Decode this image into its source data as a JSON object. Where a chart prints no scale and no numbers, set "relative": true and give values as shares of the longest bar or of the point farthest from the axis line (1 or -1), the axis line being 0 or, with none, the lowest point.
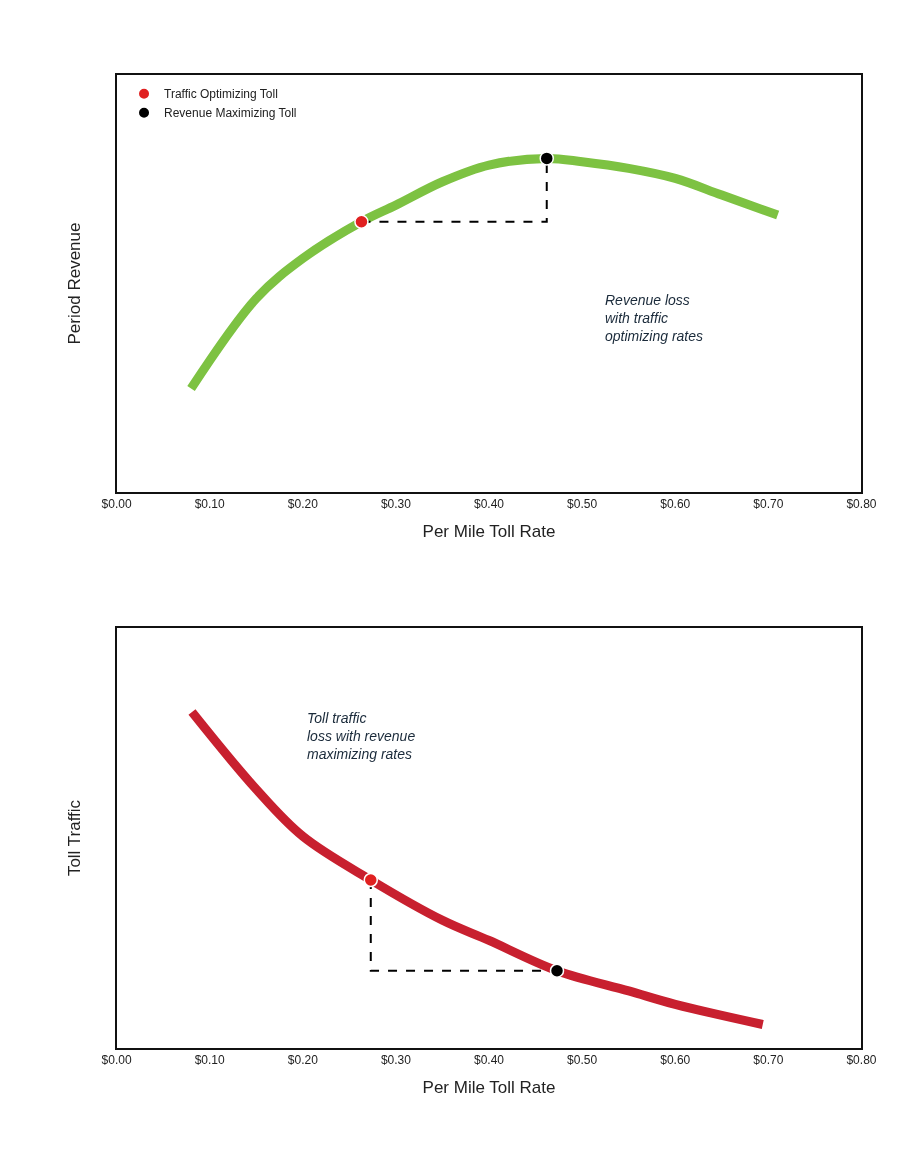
{
  "chart_data": [
    {
      "type": "line",
      "relative": true,
      "xlabel": "Per Mile Toll Rate",
      "ylabel": "Period Revenue",
      "xlim": [
        0,
        0.8
      ],
      "xticks": [
        {
          "value": 0,
          "label": "$0.00"
        },
        {
          "value": 0.1,
          "label": "$0.10"
        },
        {
          "value": 0.2,
          "label": "$0.20"
        },
        {
          "value": 0.3,
          "label": "$0.30"
        },
        {
          "value": 0.4,
          "label": "$0.40"
        },
        {
          "value": 0.5,
          "label": "$0.50"
        },
        {
          "value": 0.6,
          "label": "$0.60"
        },
        {
          "value": 0.7,
          "label": "$0.70"
        },
        {
          "value": 0.8,
          "label": "$0.80"
        }
      ],
      "legend": "top left",
      "tick_labels": "x",
      "series": [
        {
          "color": "#7dc242",
          "x": [
            0.08,
            0.15,
            0.2,
            0.263,
            0.3,
            0.35,
            0.4,
            0.462,
            0.5,
            0.55,
            0.6,
            0.65,
            0.71
          ],
          "values": [
            0.31,
            0.58,
            0.7,
            0.81,
            0.86,
            0.93,
            0.98,
            1.0,
            0.99,
            0.97,
            0.94,
            0.89,
            0.83
          ]
        },
        {
          "type": "line",
          "line_style": "dashed",
          "color": "#000000",
          "x": [
            0.263,
            0.462,
            0.462
          ],
          "values": [
            0.81,
            0.81,
            1.0
          ]
        },
        {
          "type": "scatter",
          "name": "Traffic Optimizing Toll",
          "color": "#e02020",
          "marker": "circle",
          "x": [
            0.263
          ],
          "values": [
            0.81
          ]
        },
        {
          "type": "scatter",
          "name": "Revenue Maximizing Toll",
          "color": "#000000",
          "marker": "circle",
          "x": [
            0.462
          ],
          "values": [
            1.0
          ]
        }
      ],
      "annotations": [
        "Revenue loss\nwith traffic\noptimizing rates"
      ]
    },
    {
      "type": "line",
      "relative": true,
      "xlabel": "Per Mile Toll Rate",
      "ylabel": "Toll Traffic",
      "xlim": [
        0,
        0.8
      ],
      "xticks": [
        {
          "value": 0,
          "label": "$0.00"
        },
        {
          "value": 0.1,
          "label": "$0.10"
        },
        {
          "value": 0.2,
          "label": "$0.20"
        },
        {
          "value": 0.3,
          "label": "$0.30"
        },
        {
          "value": 0.4,
          "label": "$0.40"
        },
        {
          "value": 0.5,
          "label": "$0.50"
        },
        {
          "value": 0.6,
          "label": "$0.60"
        },
        {
          "value": 0.7,
          "label": "$0.70"
        },
        {
          "value": 0.8,
          "label": "$0.80"
        }
      ],
      "tick_labels": "x",
      "series": [
        {
          "color": "#c8202f",
          "x": [
            0.081,
            0.15,
            0.2,
            0.273,
            0.35,
            0.4,
            0.473,
            0.55,
            0.6,
            0.694
          ],
          "values": [
            1.0,
            0.77,
            0.63,
            0.5,
            0.38,
            0.32,
            0.23,
            0.17,
            0.13,
            0.07
          ]
        },
        {
          "type": "line",
          "line_style": "dashed",
          "color": "#000000",
          "x": [
            0.273,
            0.273,
            0.473
          ],
          "values": [
            0.5,
            0.23,
            0.23
          ]
        },
        {
          "type": "scatter",
          "color": "#e02020",
          "marker": "circle",
          "x": [
            0.273
          ],
          "values": [
            0.5
          ]
        },
        {
          "type": "scatter",
          "color": "#000000",
          "marker": "circle",
          "x": [
            0.473
          ],
          "values": [
            0.23
          ]
        }
      ],
      "annotations": [
        "Toll traffic\nloss with revenue\nmaximizing rates"
      ]
    }
  ]
}
